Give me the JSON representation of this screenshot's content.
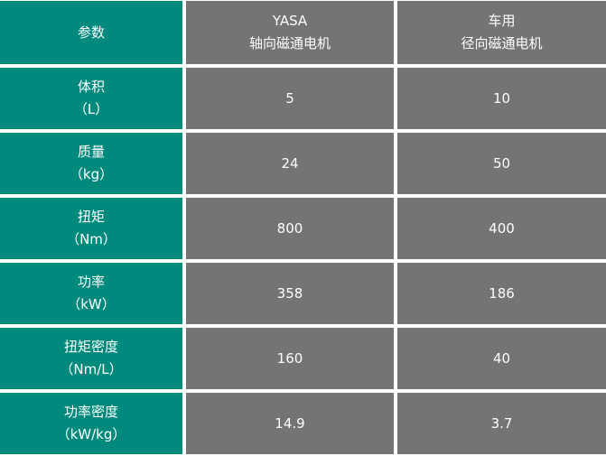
{
  "table": {
    "header": [
      [
        "参数"
      ],
      [
        "YASA",
        "轴向磁通电机"
      ],
      [
        "车用",
        "径向磁通电机"
      ]
    ],
    "rows": [
      [
        [
          "体积",
          "（L）"
        ],
        5,
        10
      ],
      [
        [
          "质量",
          "（kg）"
        ],
        24,
        50
      ],
      [
        [
          "扭矩",
          "（Nm）"
        ],
        800,
        400
      ],
      [
        [
          "功率",
          "（kW）"
        ],
        358,
        186
      ],
      [
        [
          "扭矩密度",
          "（Nm/L）"
        ],
        160,
        40
      ],
      [
        [
          "功率密度",
          "（kW/kg）"
        ],
        14.9,
        3.7
      ]
    ]
  }
}
